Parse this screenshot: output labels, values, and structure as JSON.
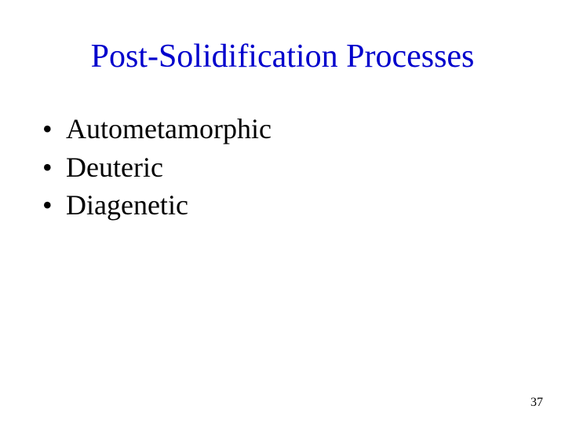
{
  "title": {
    "text": "Post-Solidification Processes",
    "color": "#0000cc",
    "fontsize": 42
  },
  "bullets": {
    "items": [
      {
        "label": "Autometamorphic"
      },
      {
        "label": "Deuteric"
      },
      {
        "label": "Diagenetic"
      }
    ],
    "text_color": "#000000",
    "fontsize": 36,
    "bullet_char": "•"
  },
  "page_number": {
    "text": "37",
    "color": "#000000",
    "fontsize": 16
  },
  "background_color": "#ffffff"
}
